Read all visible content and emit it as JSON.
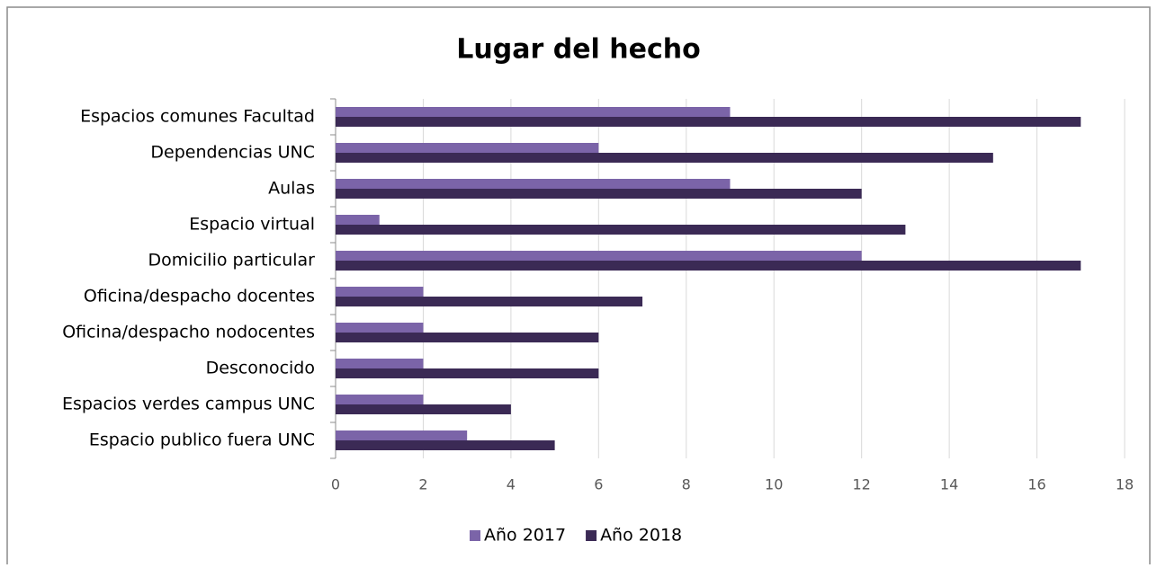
{
  "chart_data": {
    "type": "bar",
    "orientation": "horizontal",
    "title": "Lugar del hecho",
    "categories": [
      "Espacios comunes Facultad",
      "Dependencias UNC",
      "Aulas",
      "Espacio virtual",
      "Domicilio particular",
      "Oficina/despacho docentes",
      "Oficina/despacho nodocentes",
      "Desconocido",
      "Espacios verdes campus UNC",
      "Espacio publico fuera UNC"
    ],
    "series": [
      {
        "name": "Año 2017",
        "color": "#7b64a8",
        "values": [
          9,
          6,
          9,
          1,
          12,
          2,
          2,
          2,
          2,
          3
        ]
      },
      {
        "name": "Año 2018",
        "color": "#3b2a55",
        "values": [
          17,
          15,
          12,
          13,
          17,
          7,
          6,
          6,
          4,
          5
        ]
      }
    ],
    "xlim": [
      0,
      18
    ],
    "xticks": [
      0,
      2,
      4,
      6,
      8,
      10,
      12,
      14,
      16,
      18
    ],
    "grid": true,
    "legend": "bottom"
  }
}
